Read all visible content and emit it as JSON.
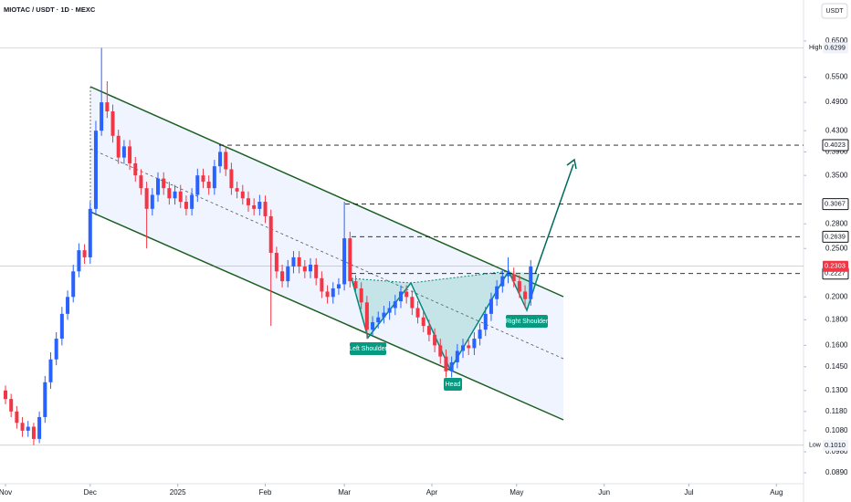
{
  "chart_data": {
    "type": "candlestick",
    "title": "MIOTAC / USDT · 1D · MEXC",
    "currency": "USDT",
    "log_scale": true,
    "up_color": "#2962ff",
    "down_color": "#f23645",
    "ylim": [
      0.0846,
      0.785
    ],
    "yticks": [
      {
        "value": 0.65,
        "label": "0.6500"
      },
      {
        "value": 0.55,
        "label": "0.5500"
      },
      {
        "value": 0.49,
        "label": "0.4900"
      },
      {
        "value": 0.43,
        "label": "0.4300"
      },
      {
        "value": 0.39,
        "label": "0.3900"
      },
      {
        "value": 0.35,
        "label": "0.3500"
      },
      {
        "value": 0.28,
        "label": "0.2800"
      },
      {
        "value": 0.25,
        "label": "0.2500"
      },
      {
        "value": 0.2,
        "label": "0.2000"
      },
      {
        "value": 0.18,
        "label": "0.1800"
      },
      {
        "value": 0.16,
        "label": "0.1600"
      },
      {
        "value": 0.145,
        "label": "0.1450"
      },
      {
        "value": 0.13,
        "label": "0.1300"
      },
      {
        "value": 0.118,
        "label": "0.1180"
      },
      {
        "value": 0.108,
        "label": "0.1080"
      },
      {
        "value": 0.098,
        "label": "0.0980"
      },
      {
        "value": 0.089,
        "label": "0.0890"
      }
    ],
    "xlim": [
      -1.94,
      282.6
    ],
    "xticks": [
      {
        "value": 0,
        "label": "Nov"
      },
      {
        "value": 30,
        "label": "Dec"
      },
      {
        "value": 61,
        "label": "2025"
      },
      {
        "value": 92,
        "label": "Feb"
      },
      {
        "value": 120,
        "label": "Mar"
      },
      {
        "value": 151,
        "label": "Apr"
      },
      {
        "value": 181,
        "label": "May"
      },
      {
        "value": 212,
        "label": "Jun"
      },
      {
        "value": 242,
        "label": "Jul"
      },
      {
        "value": 273,
        "label": "Aug"
      }
    ],
    "x": [
      0,
      2,
      4,
      6,
      8,
      10,
      12,
      14,
      16,
      18,
      20,
      22,
      24,
      26,
      28,
      30,
      32,
      34,
      36,
      38,
      40,
      42,
      44,
      46,
      48,
      50,
      52,
      54,
      56,
      58,
      60,
      62,
      64,
      66,
      68,
      70,
      72,
      74,
      76,
      78,
      80,
      82,
      84,
      86,
      88,
      90,
      92,
      94,
      96,
      98,
      100,
      102,
      104,
      106,
      108,
      110,
      112,
      114,
      116,
      118,
      120,
      122,
      124,
      126,
      128,
      130,
      132,
      134,
      136,
      138,
      140,
      142,
      144,
      146,
      148,
      150,
      152,
      154,
      156,
      158,
      160,
      162,
      164,
      166,
      168,
      170,
      172,
      174,
      176,
      178,
      180,
      182,
      184,
      186
    ],
    "ohlc": [
      [
        0.13,
        0.133,
        0.122,
        0.125
      ],
      [
        0.125,
        0.128,
        0.115,
        0.118
      ],
      [
        0.118,
        0.121,
        0.109,
        0.112
      ],
      [
        0.112,
        0.115,
        0.105,
        0.108
      ],
      [
        0.108,
        0.113,
        0.105,
        0.11
      ],
      [
        0.11,
        0.112,
        0.101,
        0.104
      ],
      [
        0.104,
        0.118,
        0.102,
        0.115
      ],
      [
        0.115,
        0.139,
        0.112,
        0.135
      ],
      [
        0.135,
        0.155,
        0.131,
        0.15
      ],
      [
        0.15,
        0.17,
        0.146,
        0.165
      ],
      [
        0.165,
        0.191,
        0.16,
        0.185
      ],
      [
        0.185,
        0.206,
        0.18,
        0.2
      ],
      [
        0.2,
        0.232,
        0.195,
        0.225
      ],
      [
        0.225,
        0.256,
        0.219,
        0.248
      ],
      [
        0.248,
        0.255,
        0.233,
        0.24
      ],
      [
        0.24,
        0.31,
        0.233,
        0.3
      ],
      [
        0.3,
        0.45,
        0.291,
        0.43
      ],
      [
        0.43,
        0.6299,
        0.42,
        0.49
      ],
      [
        0.49,
        0.54,
        0.456,
        0.47
      ],
      [
        0.47,
        0.485,
        0.407,
        0.42
      ],
      [
        0.42,
        0.432,
        0.369,
        0.38
      ],
      [
        0.38,
        0.412,
        0.369,
        0.4
      ],
      [
        0.4,
        0.412,
        0.359,
        0.37
      ],
      [
        0.37,
        0.381,
        0.34,
        0.35
      ],
      [
        0.35,
        0.36,
        0.32,
        0.33
      ],
      [
        0.33,
        0.34,
        0.25,
        0.3
      ],
      [
        0.3,
        0.33,
        0.291,
        0.32
      ],
      [
        0.32,
        0.355,
        0.31,
        0.345
      ],
      [
        0.345,
        0.355,
        0.32,
        0.33
      ],
      [
        0.33,
        0.34,
        0.306,
        0.315
      ],
      [
        0.315,
        0.335,
        0.306,
        0.325
      ],
      [
        0.325,
        0.335,
        0.301,
        0.31
      ],
      [
        0.31,
        0.319,
        0.291,
        0.3
      ],
      [
        0.3,
        0.33,
        0.291,
        0.32
      ],
      [
        0.32,
        0.361,
        0.31,
        0.35
      ],
      [
        0.35,
        0.361,
        0.33,
        0.34
      ],
      [
        0.34,
        0.35,
        0.32,
        0.33
      ],
      [
        0.33,
        0.376,
        0.32,
        0.365
      ],
      [
        0.365,
        0.4023,
        0.354,
        0.39
      ],
      [
        0.39,
        0.4,
        0.349,
        0.36
      ],
      [
        0.36,
        0.371,
        0.32,
        0.33
      ],
      [
        0.33,
        0.34,
        0.315,
        0.325
      ],
      [
        0.325,
        0.335,
        0.306,
        0.315
      ],
      [
        0.315,
        0.325,
        0.296,
        0.305
      ],
      [
        0.305,
        0.315,
        0.291,
        0.3
      ],
      [
        0.3,
        0.32,
        0.291,
        0.31
      ],
      [
        0.31,
        0.319,
        0.281,
        0.29
      ],
      [
        0.29,
        0.299,
        0.175,
        0.245
      ],
      [
        0.245,
        0.252,
        0.218,
        0.225
      ],
      [
        0.225,
        0.232,
        0.209,
        0.215
      ],
      [
        0.215,
        0.237,
        0.209,
        0.23
      ],
      [
        0.23,
        0.247,
        0.223,
        0.24
      ],
      [
        0.24,
        0.247,
        0.223,
        0.23
      ],
      [
        0.23,
        0.237,
        0.218,
        0.225
      ],
      [
        0.225,
        0.239,
        0.218,
        0.232
      ],
      [
        0.232,
        0.239,
        0.211,
        0.218
      ],
      [
        0.218,
        0.225,
        0.199,
        0.205
      ],
      [
        0.205,
        0.211,
        0.194,
        0.2
      ],
      [
        0.2,
        0.214,
        0.194,
        0.208
      ],
      [
        0.208,
        0.218,
        0.202,
        0.212
      ],
      [
        0.212,
        0.31,
        0.206,
        0.262
      ],
      [
        0.262,
        0.27,
        0.209,
        0.215
      ],
      [
        0.215,
        0.221,
        0.202,
        0.208
      ],
      [
        0.208,
        0.214,
        0.189,
        0.195
      ],
      [
        0.195,
        0.201,
        0.165,
        0.172
      ],
      [
        0.172,
        0.183,
        0.167,
        0.178
      ],
      [
        0.178,
        0.187,
        0.173,
        0.182
      ],
      [
        0.182,
        0.192,
        0.177,
        0.186
      ],
      [
        0.186,
        0.196,
        0.18,
        0.19
      ],
      [
        0.19,
        0.202,
        0.184,
        0.196
      ],
      [
        0.196,
        0.211,
        0.19,
        0.205
      ],
      [
        0.205,
        0.211,
        0.194,
        0.2
      ],
      [
        0.2,
        0.206,
        0.184,
        0.19
      ],
      [
        0.19,
        0.196,
        0.177,
        0.182
      ],
      [
        0.182,
        0.187,
        0.17,
        0.175
      ],
      [
        0.175,
        0.18,
        0.163,
        0.168
      ],
      [
        0.168,
        0.173,
        0.155,
        0.16
      ],
      [
        0.16,
        0.165,
        0.147,
        0.152
      ],
      [
        0.152,
        0.157,
        0.138,
        0.142
      ],
      [
        0.142,
        0.152,
        0.138,
        0.148
      ],
      [
        0.148,
        0.161,
        0.144,
        0.156
      ],
      [
        0.156,
        0.165,
        0.151,
        0.16
      ],
      [
        0.16,
        0.165,
        0.153,
        0.158
      ],
      [
        0.158,
        0.17,
        0.153,
        0.165
      ],
      [
        0.165,
        0.177,
        0.16,
        0.172
      ],
      [
        0.172,
        0.191,
        0.167,
        0.185
      ],
      [
        0.185,
        0.204,
        0.179,
        0.198
      ],
      [
        0.198,
        0.216,
        0.192,
        0.21
      ],
      [
        0.21,
        0.227,
        0.204,
        0.22
      ],
      [
        0.22,
        0.24,
        0.213,
        0.222
      ],
      [
        0.222,
        0.229,
        0.209,
        0.215
      ],
      [
        0.215,
        0.221,
        0.199,
        0.205
      ],
      [
        0.205,
        0.211,
        0.19,
        0.198
      ],
      [
        0.198,
        0.237,
        0.192,
        0.23
      ]
    ],
    "levels": [
      0.4023,
      0.3067,
      0.2639,
      0.2227
    ],
    "last_price": 0.2303,
    "high_label": "High",
    "high": 0.6299,
    "low_label": "Low",
    "low": {
      "value": 0.101,
      "label": "0.1010"
    },
    "annotations": [
      "Left Shoulder",
      "Head",
      "Right Shoulder"
    ]
  }
}
